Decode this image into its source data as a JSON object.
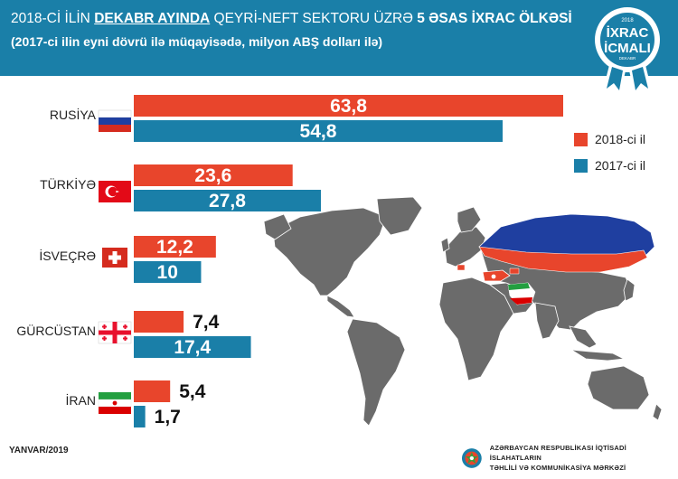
{
  "header": {
    "title_pre": "2018-Cİ İLİN ",
    "title_highlight": "DEKABR AYINDA",
    "title_mid": "  QEYRİ-NEFT SEKTORU ÜZRƏ ",
    "title_bold": "5 ƏSAS İXRAC ÖLKƏSİ",
    "subtitle": "(2017-ci ilin eyni dövrü ilə müqayisədə, milyon ABŞ dolları ilə)"
  },
  "badge": {
    "year": "2018",
    "line1": "İXRAC",
    "line2": "İCMALI",
    "small": "DEKABR"
  },
  "legend": {
    "items": [
      {
        "label": "2018-ci il",
        "color": "#e8452c"
      },
      {
        "label": "2017-ci il",
        "color": "#1a7fa8"
      }
    ]
  },
  "chart_data": {
    "type": "bar",
    "orientation": "horizontal",
    "categories": [
      "RUSİYA",
      "TÜRKİYƏ",
      "İSVEÇRƏ",
      "GÜRCÜSTAN",
      "İRAN"
    ],
    "series": [
      {
        "name": "2018-ci il",
        "color": "#e8452c",
        "values": [
          63.8,
          23.6,
          12.2,
          7.4,
          5.4
        ],
        "labels": [
          "63,8",
          "23,6",
          "12,2",
          "7,4",
          "5,4"
        ]
      },
      {
        "name": "2017-ci il",
        "color": "#1a7fa8",
        "values": [
          54.8,
          27.8,
          10,
          17.4,
          1.7
        ],
        "labels": [
          "54,8",
          "27,8",
          "10",
          "17,4",
          "1,7"
        ]
      }
    ],
    "legend_position": "right",
    "grid": false
  },
  "flags": [
    "russia",
    "turkey",
    "switzerland",
    "georgia",
    "iran"
  ],
  "footer": {
    "date": "YANVAR/2019",
    "org_line1": "AZƏRBAYCAN RESPUBLİKASI İQTİSADİ İSLAHATLARIN",
    "org_line2": "TƏHLİLİ VƏ KOMMUNİKASİYA MƏRKƏZİ"
  }
}
